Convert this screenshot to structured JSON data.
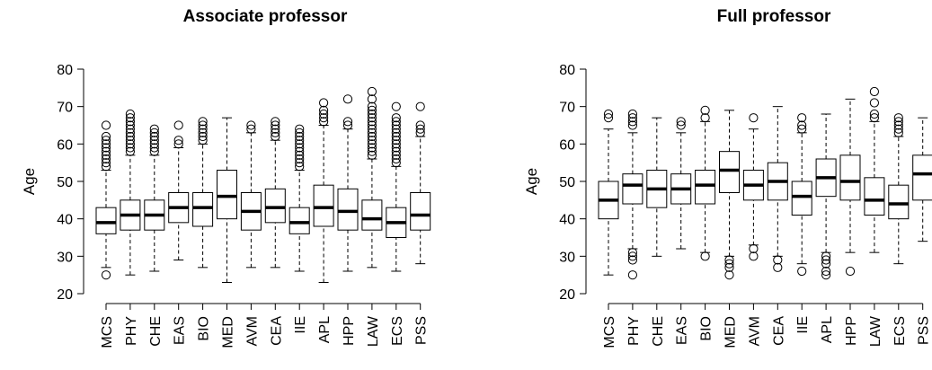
{
  "chart_data": [
    {
      "type": "boxplot",
      "title": "Associate professor",
      "ylabel": "Age",
      "xlabel": "",
      "ylim": [
        20,
        80
      ],
      "yticks": [
        20,
        30,
        40,
        50,
        60,
        70,
        80
      ],
      "categories": [
        "MCS",
        "PHY",
        "CHE",
        "EAS",
        "BIO",
        "MED",
        "AVM",
        "CEA",
        "IIE",
        "APL",
        "HPP",
        "LAW",
        "ECS",
        "PSS"
      ],
      "boxes": [
        {
          "min": 27,
          "q1": 36,
          "median": 39,
          "q3": 43,
          "max": 53,
          "outliers": [
            25,
            54,
            55,
            56,
            57,
            58,
            59,
            60,
            61,
            62,
            65
          ]
        },
        {
          "min": 25,
          "q1": 37,
          "median": 41,
          "q3": 45,
          "max": 57,
          "outliers": [
            58,
            59,
            60,
            61,
            62,
            63,
            64,
            65,
            66,
            67,
            68
          ]
        },
        {
          "min": 26,
          "q1": 37,
          "median": 41,
          "q3": 45,
          "max": 57,
          "outliers": [
            58,
            59,
            60,
            61,
            62,
            63,
            64
          ]
        },
        {
          "min": 29,
          "q1": 39,
          "median": 43,
          "q3": 47,
          "max": 59,
          "outliers": [
            60,
            61,
            65
          ]
        },
        {
          "min": 27,
          "q1": 38,
          "median": 43,
          "q3": 47,
          "max": 60,
          "outliers": [
            61,
            62,
            63,
            64,
            65,
            66
          ]
        },
        {
          "min": 23,
          "q1": 40,
          "median": 46,
          "q3": 53,
          "max": 67,
          "outliers": []
        },
        {
          "min": 27,
          "q1": 37,
          "median": 42,
          "q3": 47,
          "max": 63,
          "outliers": [
            64,
            65
          ]
        },
        {
          "min": 27,
          "q1": 39,
          "median": 43,
          "q3": 48,
          "max": 61,
          "outliers": [
            62,
            63,
            64,
            65,
            66
          ]
        },
        {
          "min": 26,
          "q1": 36,
          "median": 39,
          "q3": 43,
          "max": 53,
          "outliers": [
            54,
            55,
            56,
            57,
            58,
            59,
            60,
            61,
            62,
            63,
            64
          ]
        },
        {
          "min": 23,
          "q1": 38,
          "median": 43,
          "q3": 49,
          "max": 65,
          "outliers": [
            66,
            67,
            68,
            69,
            71
          ]
        },
        {
          "min": 26,
          "q1": 37,
          "median": 42,
          "q3": 48,
          "max": 64,
          "outliers": [
            65,
            66,
            72
          ]
        },
        {
          "min": 27,
          "q1": 37,
          "median": 40,
          "q3": 45,
          "max": 56,
          "outliers": [
            57,
            58,
            59,
            60,
            61,
            62,
            63,
            64,
            65,
            66,
            67,
            68,
            69,
            70,
            72,
            74
          ]
        },
        {
          "min": 26,
          "q1": 35,
          "median": 39,
          "q3": 43,
          "max": 54,
          "outliers": [
            55,
            56,
            57,
            58,
            59,
            60,
            61,
            62,
            63,
            64,
            65,
            66,
            67,
            70
          ]
        },
        {
          "min": 28,
          "q1": 37,
          "median": 41,
          "q3": 47,
          "max": 62,
          "outliers": [
            63,
            64,
            65,
            70
          ]
        }
      ]
    },
    {
      "type": "boxplot",
      "title": "Full professor",
      "ylabel": "Age",
      "xlabel": "",
      "ylim": [
        20,
        80
      ],
      "yticks": [
        20,
        30,
        40,
        50,
        60,
        70,
        80
      ],
      "categories": [
        "MCS",
        "PHY",
        "CHE",
        "EAS",
        "BIO",
        "MED",
        "AVM",
        "CEA",
        "IIE",
        "APL",
        "HPP",
        "LAW",
        "ECS",
        "PSS"
      ],
      "boxes": [
        {
          "min": 25,
          "q1": 40,
          "median": 45,
          "q3": 50,
          "max": 64,
          "outliers": [
            67,
            68
          ]
        },
        {
          "min": 32,
          "q1": 44,
          "median": 49,
          "q3": 52,
          "max": 63,
          "outliers": [
            25,
            29,
            30,
            31,
            65,
            66,
            67,
            68
          ]
        },
        {
          "min": 30,
          "q1": 43,
          "median": 48,
          "q3": 53,
          "max": 67,
          "outliers": []
        },
        {
          "min": 32,
          "q1": 44,
          "median": 48,
          "q3": 52,
          "max": 63,
          "outliers": [
            65,
            66
          ]
        },
        {
          "min": 31,
          "q1": 44,
          "median": 49,
          "q3": 53,
          "max": 66,
          "outliers": [
            30,
            67,
            69
          ]
        },
        {
          "min": 30,
          "q1": 47,
          "median": 53,
          "q3": 58,
          "max": 69,
          "outliers": [
            25,
            27,
            28,
            29
          ]
        },
        {
          "min": 33,
          "q1": 45,
          "median": 49,
          "q3": 53,
          "max": 64,
          "outliers": [
            30,
            32,
            67
          ]
        },
        {
          "min": 30,
          "q1": 45,
          "median": 50,
          "q3": 55,
          "max": 70,
          "outliers": [
            27,
            29
          ]
        },
        {
          "min": 28,
          "q1": 41,
          "median": 46,
          "q3": 50,
          "max": 63,
          "outliers": [
            26,
            64,
            65,
            67
          ]
        },
        {
          "min": 31,
          "q1": 46,
          "median": 51,
          "q3": 56,
          "max": 68,
          "outliers": [
            25,
            26,
            28,
            29,
            30
          ]
        },
        {
          "min": 31,
          "q1": 45,
          "median": 50,
          "q3": 57,
          "max": 72,
          "outliers": [
            26
          ]
        },
        {
          "min": 31,
          "q1": 41,
          "median": 45,
          "q3": 51,
          "max": 66,
          "outliers": [
            67,
            68,
            71,
            74
          ]
        },
        {
          "min": 28,
          "q1": 40,
          "median": 44,
          "q3": 49,
          "max": 62,
          "outliers": [
            63,
            64,
            65,
            66,
            67
          ]
        },
        {
          "min": 34,
          "q1": 45,
          "median": 52,
          "q3": 57,
          "max": 67,
          "outliers": []
        }
      ]
    }
  ]
}
